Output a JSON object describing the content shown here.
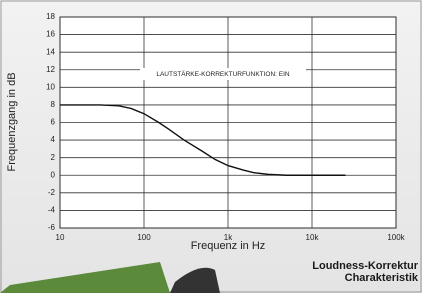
{
  "chart_data": {
    "type": "line",
    "ylabel": "Frequenzgang in dB",
    "xlabel": "Frequenz in Hz",
    "annotation": "LAUTSTÄRKE-KORREKTURFUNKTION: EIN",
    "caption": [
      "Loudness-Korrektur",
      "Charakteristik"
    ],
    "x": [
      10,
      20,
      30,
      50,
      70,
      100,
      150,
      200,
      300,
      500,
      700,
      1000,
      1500,
      2000,
      3000,
      5000,
      10000,
      20000,
      25000
    ],
    "values": [
      8,
      8,
      8,
      7.9,
      7.6,
      7,
      6,
      5.2,
      4,
      2.7,
      1.8,
      1.1,
      0.6,
      0.3,
      0.1,
      0,
      0,
      0,
      0
    ],
    "color": "#111111",
    "xscale": "log",
    "xlim": [
      10,
      100000
    ],
    "xticks": [
      10,
      100,
      {
        "value": 1000,
        "label": "1k"
      },
      {
        "value": 10000,
        "label": "10k"
      },
      {
        "value": 100000,
        "label": "100k"
      }
    ],
    "ylim": [
      -6,
      18
    ],
    "yticks": [
      -6,
      -4,
      -2,
      0,
      2,
      4,
      6,
      8,
      10,
      12,
      14,
      16,
      18
    ],
    "grid": true
  }
}
